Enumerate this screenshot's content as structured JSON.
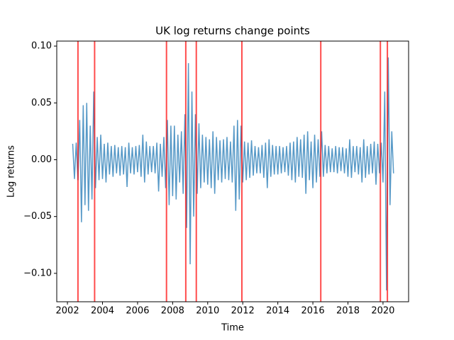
{
  "chart_data": {
    "type": "line",
    "title": "UK log returns change points",
    "xlabel": "Time",
    "ylabel": "Log returns",
    "color": "#1f77b4",
    "change_point_color": "red",
    "change_points": [
      2002.6,
      2003.55,
      2007.65,
      2008.75,
      2009.35,
      2011.95,
      2016.45,
      2019.85,
      2020.25
    ],
    "xlim": [
      2001.39,
      2021.46
    ],
    "ylim": [
      -0.125,
      0.1044
    ],
    "xticks": [
      2002,
      2004,
      2006,
      2008,
      2010,
      2012,
      2014,
      2016,
      2018,
      2020
    ],
    "yticks": [
      {
        "value": 0.1,
        "label": "0.10"
      },
      {
        "value": 0.05,
        "label": "0.05"
      },
      {
        "value": 0,
        "label": "0.00"
      },
      {
        "value": -0.05,
        "label": "−0.05"
      },
      {
        "value": -0.1,
        "label": "−0.10"
      }
    ],
    "x": [
      2002.3,
      2002.4,
      2002.5,
      2002.6,
      2002.7,
      2002.8,
      2002.9,
      2003.0,
      2003.1,
      2003.2,
      2003.3,
      2003.4,
      2003.5,
      2003.6,
      2003.7,
      2003.8,
      2003.9,
      2004.0,
      2004.1,
      2004.2,
      2004.3,
      2004.4,
      2004.5,
      2004.6,
      2004.7,
      2004.8,
      2004.9,
      2005.0,
      2005.1,
      2005.2,
      2005.3,
      2005.4,
      2005.5,
      2005.6,
      2005.7,
      2005.8,
      2005.9,
      2006.0,
      2006.1,
      2006.2,
      2006.3,
      2006.4,
      2006.5,
      2006.6,
      2006.7,
      2006.8,
      2006.9,
      2007.0,
      2007.1,
      2007.2,
      2007.3,
      2007.4,
      2007.5,
      2007.6,
      2007.7,
      2007.8,
      2007.9,
      2008.0,
      2008.1,
      2008.2,
      2008.3,
      2008.4,
      2008.5,
      2008.6,
      2008.7,
      2008.8,
      2008.9,
      2009.0,
      2009.1,
      2009.2,
      2009.3,
      2009.4,
      2009.5,
      2009.6,
      2009.7,
      2009.8,
      2009.9,
      2010.0,
      2010.1,
      2010.2,
      2010.3,
      2010.4,
      2010.5,
      2010.6,
      2010.7,
      2010.8,
      2010.9,
      2011.0,
      2011.1,
      2011.2,
      2011.3,
      2011.4,
      2011.5,
      2011.6,
      2011.7,
      2011.8,
      2011.9,
      2012.0,
      2012.1,
      2012.2,
      2012.3,
      2012.4,
      2012.5,
      2012.6,
      2012.7,
      2012.8,
      2012.9,
      2013.0,
      2013.1,
      2013.2,
      2013.3,
      2013.4,
      2013.5,
      2013.6,
      2013.7,
      2013.8,
      2013.9,
      2014.0,
      2014.1,
      2014.2,
      2014.3,
      2014.4,
      2014.5,
      2014.6,
      2014.7,
      2014.8,
      2014.9,
      2015.0,
      2015.1,
      2015.2,
      2015.3,
      2015.4,
      2015.5,
      2015.6,
      2015.7,
      2015.8,
      2015.9,
      2016.0,
      2016.1,
      2016.2,
      2016.3,
      2016.4,
      2016.5,
      2016.6,
      2016.7,
      2016.8,
      2016.9,
      2017.0,
      2017.1,
      2017.2,
      2017.3,
      2017.4,
      2017.5,
      2017.6,
      2017.7,
      2017.8,
      2017.9,
      2018.0,
      2018.1,
      2018.2,
      2018.3,
      2018.4,
      2018.5,
      2018.6,
      2018.7,
      2018.8,
      2018.9,
      2019.0,
      2019.1,
      2019.2,
      2019.3,
      2019.4,
      2019.5,
      2019.6,
      2019.7,
      2019.8,
      2019.9,
      2020.0,
      2020.1,
      2020.2,
      2020.3,
      2020.4,
      2020.5,
      2020.6
    ],
    "values": [
      0.014,
      -0.017,
      0.015,
      -0.018,
      0.035,
      -0.055,
      0.048,
      -0.04,
      0.05,
      -0.045,
      0.03,
      -0.035,
      0.06,
      -0.025,
      0.02,
      -0.018,
      0.022,
      -0.017,
      0.014,
      -0.02,
      0.015,
      -0.013,
      0.012,
      -0.015,
      0.013,
      -0.012,
      0.011,
      -0.014,
      0.012,
      -0.013,
      0.011,
      -0.024,
      0.015,
      -0.012,
      0.011,
      -0.013,
      0.012,
      -0.011,
      0.013,
      -0.015,
      0.022,
      -0.02,
      0.016,
      -0.013,
      0.012,
      -0.011,
      0.012,
      -0.012,
      0.015,
      -0.028,
      0.014,
      -0.015,
      0.02,
      -0.025,
      0.035,
      -0.04,
      0.03,
      -0.032,
      0.03,
      -0.035,
      0.022,
      -0.02,
      0.025,
      -0.03,
      0.04,
      -0.06,
      0.085,
      -0.092,
      0.06,
      -0.05,
      0.04,
      -0.03,
      0.032,
      -0.025,
      0.022,
      -0.02,
      0.02,
      -0.022,
      0.018,
      -0.025,
      0.025,
      -0.03,
      0.02,
      -0.018,
      0.017,
      -0.02,
      0.018,
      -0.017,
      0.02,
      -0.018,
      0.016,
      -0.02,
      0.03,
      -0.045,
      0.035,
      -0.035,
      0.03,
      -0.02,
      0.016,
      -0.018,
      0.015,
      -0.016,
      0.017,
      -0.014,
      0.012,
      -0.012,
      0.011,
      -0.012,
      0.013,
      -0.016,
      0.015,
      -0.025,
      0.018,
      -0.015,
      0.013,
      -0.013,
      0.012,
      -0.013,
      0.012,
      -0.012,
      0.011,
      -0.011,
      0.012,
      -0.014,
      0.015,
      -0.018,
      0.016,
      -0.02,
      0.02,
      -0.015,
      0.018,
      -0.016,
      0.022,
      -0.03,
      0.025,
      -0.018,
      0.016,
      -0.025,
      0.022,
      -0.02,
      0.018,
      -0.015,
      0.025,
      -0.015,
      0.013,
      -0.012,
      0.012,
      -0.011,
      0.01,
      -0.011,
      0.012,
      -0.012,
      0.011,
      -0.01,
      0.011,
      -0.012,
      0.01,
      -0.015,
      0.018,
      -0.016,
      0.012,
      -0.011,
      0.012,
      -0.013,
      0.011,
      -0.02,
      0.018,
      -0.016,
      0.012,
      -0.013,
      0.014,
      -0.012,
      0.016,
      -0.022,
      0.014,
      -0.012,
      0.015,
      -0.02,
      0.06,
      -0.115,
      0.09,
      -0.04,
      0.025,
      -0.012
    ]
  }
}
